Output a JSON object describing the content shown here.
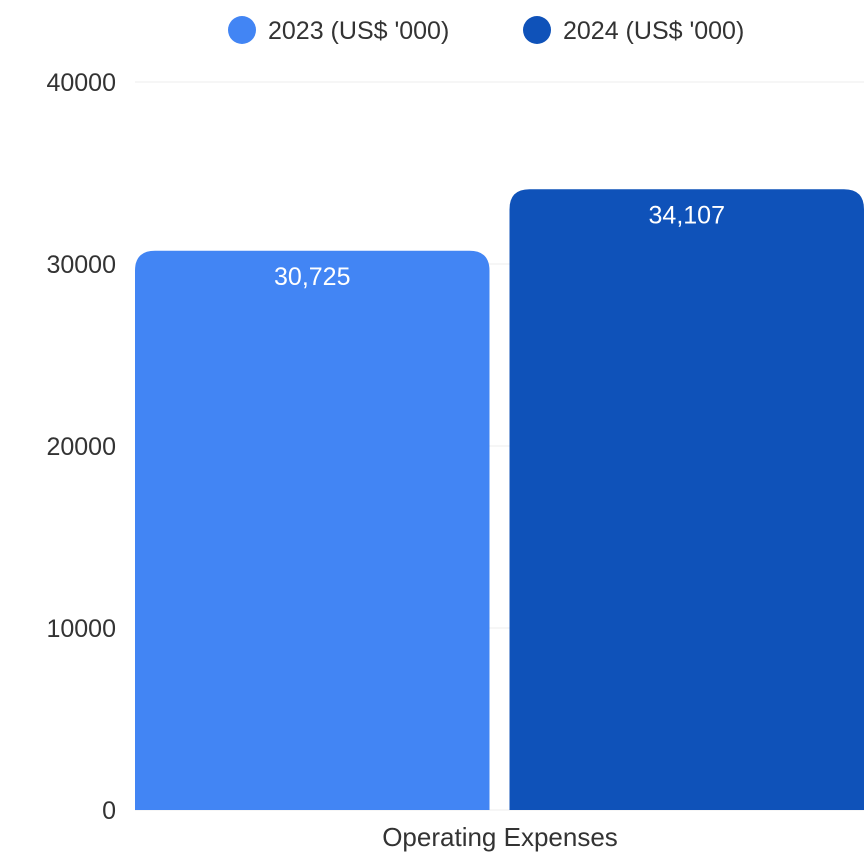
{
  "chart_data": {
    "type": "bar",
    "categories": [
      "Operating Expenses"
    ],
    "series": [
      {
        "name": "2023 (US$ '000)",
        "values": [
          30725
        ],
        "labels": [
          "30,725"
        ],
        "color": "#4285f4"
      },
      {
        "name": "2024 (US$ '000)",
        "values": [
          34107
        ],
        "labels": [
          "34,107"
        ],
        "color": "#0f52b9"
      }
    ],
    "ylim": [
      0,
      40000
    ],
    "yticks": [
      "0",
      "10000",
      "20000",
      "30000",
      "40000"
    ],
    "grid": true,
    "legend_position": "top"
  }
}
